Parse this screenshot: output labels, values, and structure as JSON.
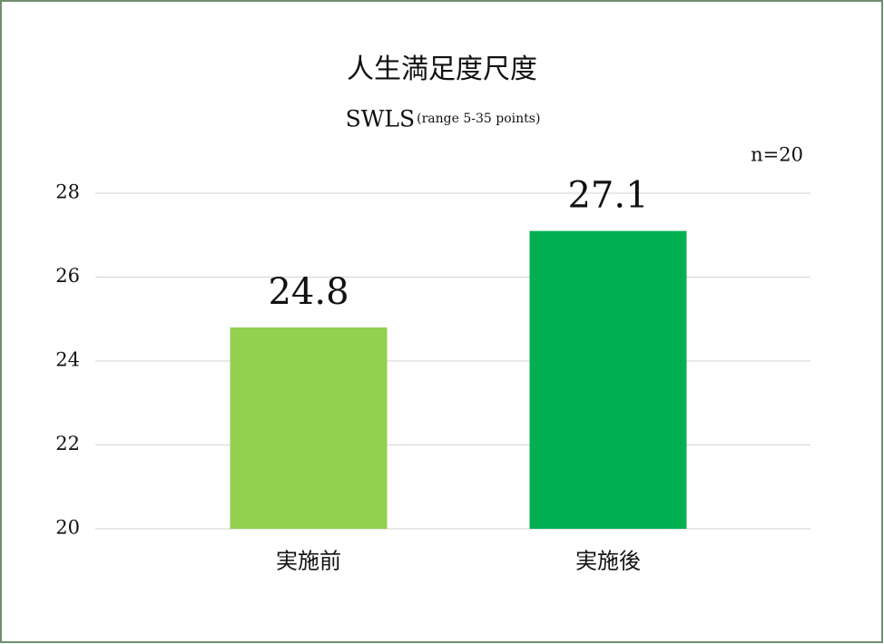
{
  "chart_data": {
    "type": "bar",
    "title": "人生満足度尺度",
    "subtitle": "SWLS",
    "subtitle_note": "(range 5-35 points)",
    "annotation": "n=20",
    "categories": [
      "実施前",
      "実施後"
    ],
    "values": [
      24.8,
      27.1
    ],
    "colors": [
      "#92d050",
      "#00b050"
    ],
    "ylim": [
      20,
      28
    ],
    "yticks": [
      20,
      22,
      24,
      26,
      28
    ],
    "grid": true
  }
}
